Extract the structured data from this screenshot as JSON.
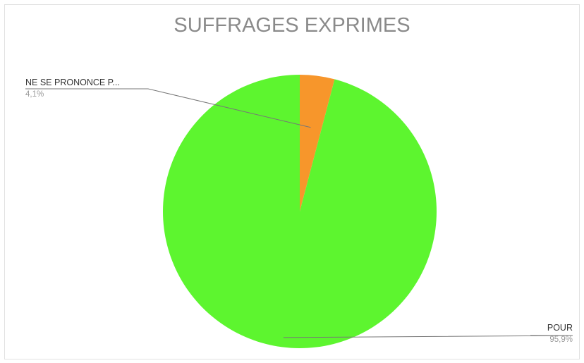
{
  "chart_data": {
    "type": "pie",
    "title": "SUFFRAGES EXPRIMES",
    "slices": [
      {
        "label": "NE SE PRONONCE P...",
        "value": 4.1,
        "value_label": "4,1%",
        "color": "#f7962b"
      },
      {
        "label": "POUR",
        "value": 95.9,
        "value_label": "95,9%",
        "color": "#5df52f"
      }
    ],
    "legend": "none"
  }
}
